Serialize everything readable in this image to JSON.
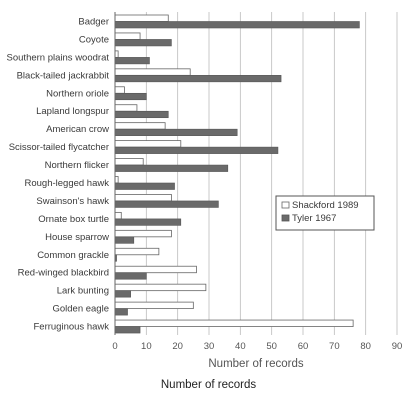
{
  "chart_data": {
    "type": "bar",
    "orientation": "horizontal",
    "categories": [
      "Badger",
      "Coyote",
      "Southern plains woodrat",
      "Black-tailed jackrabbit",
      "Northern oriole",
      "Lapland longspur",
      "American crow",
      "Scissor-tailed flycatcher",
      "Northern flicker",
      "Rough-legged hawk",
      "Swainson's hawk",
      "Ornate box turtle",
      "House sparrow",
      "Common grackle",
      "Red-winged blackbird",
      "Lark bunting",
      "Golden eagle",
      "Ferruginous hawk"
    ],
    "series": [
      {
        "name": "Shackford 1989",
        "color": "#ffffff",
        "values": [
          17,
          8,
          1,
          24,
          3,
          7,
          16,
          21,
          9,
          1,
          18,
          2,
          18,
          14,
          26,
          29,
          25,
          76
        ]
      },
      {
        "name": "Tyler 1967",
        "color": "#6a6a6a",
        "values": [
          78,
          18,
          11,
          53,
          10,
          17,
          39,
          52,
          36,
          19,
          33,
          21,
          6,
          0.5,
          10,
          5,
          4,
          8
        ]
      }
    ],
    "xlabel": "Number of records",
    "xlim": [
      0,
      90
    ],
    "xticks": [
      "0",
      "10",
      "20",
      "30",
      "40",
      "50",
      "60",
      "70",
      "80",
      "90"
    ],
    "grid": true,
    "legend_placement": "right"
  },
  "caption": "Number of records"
}
